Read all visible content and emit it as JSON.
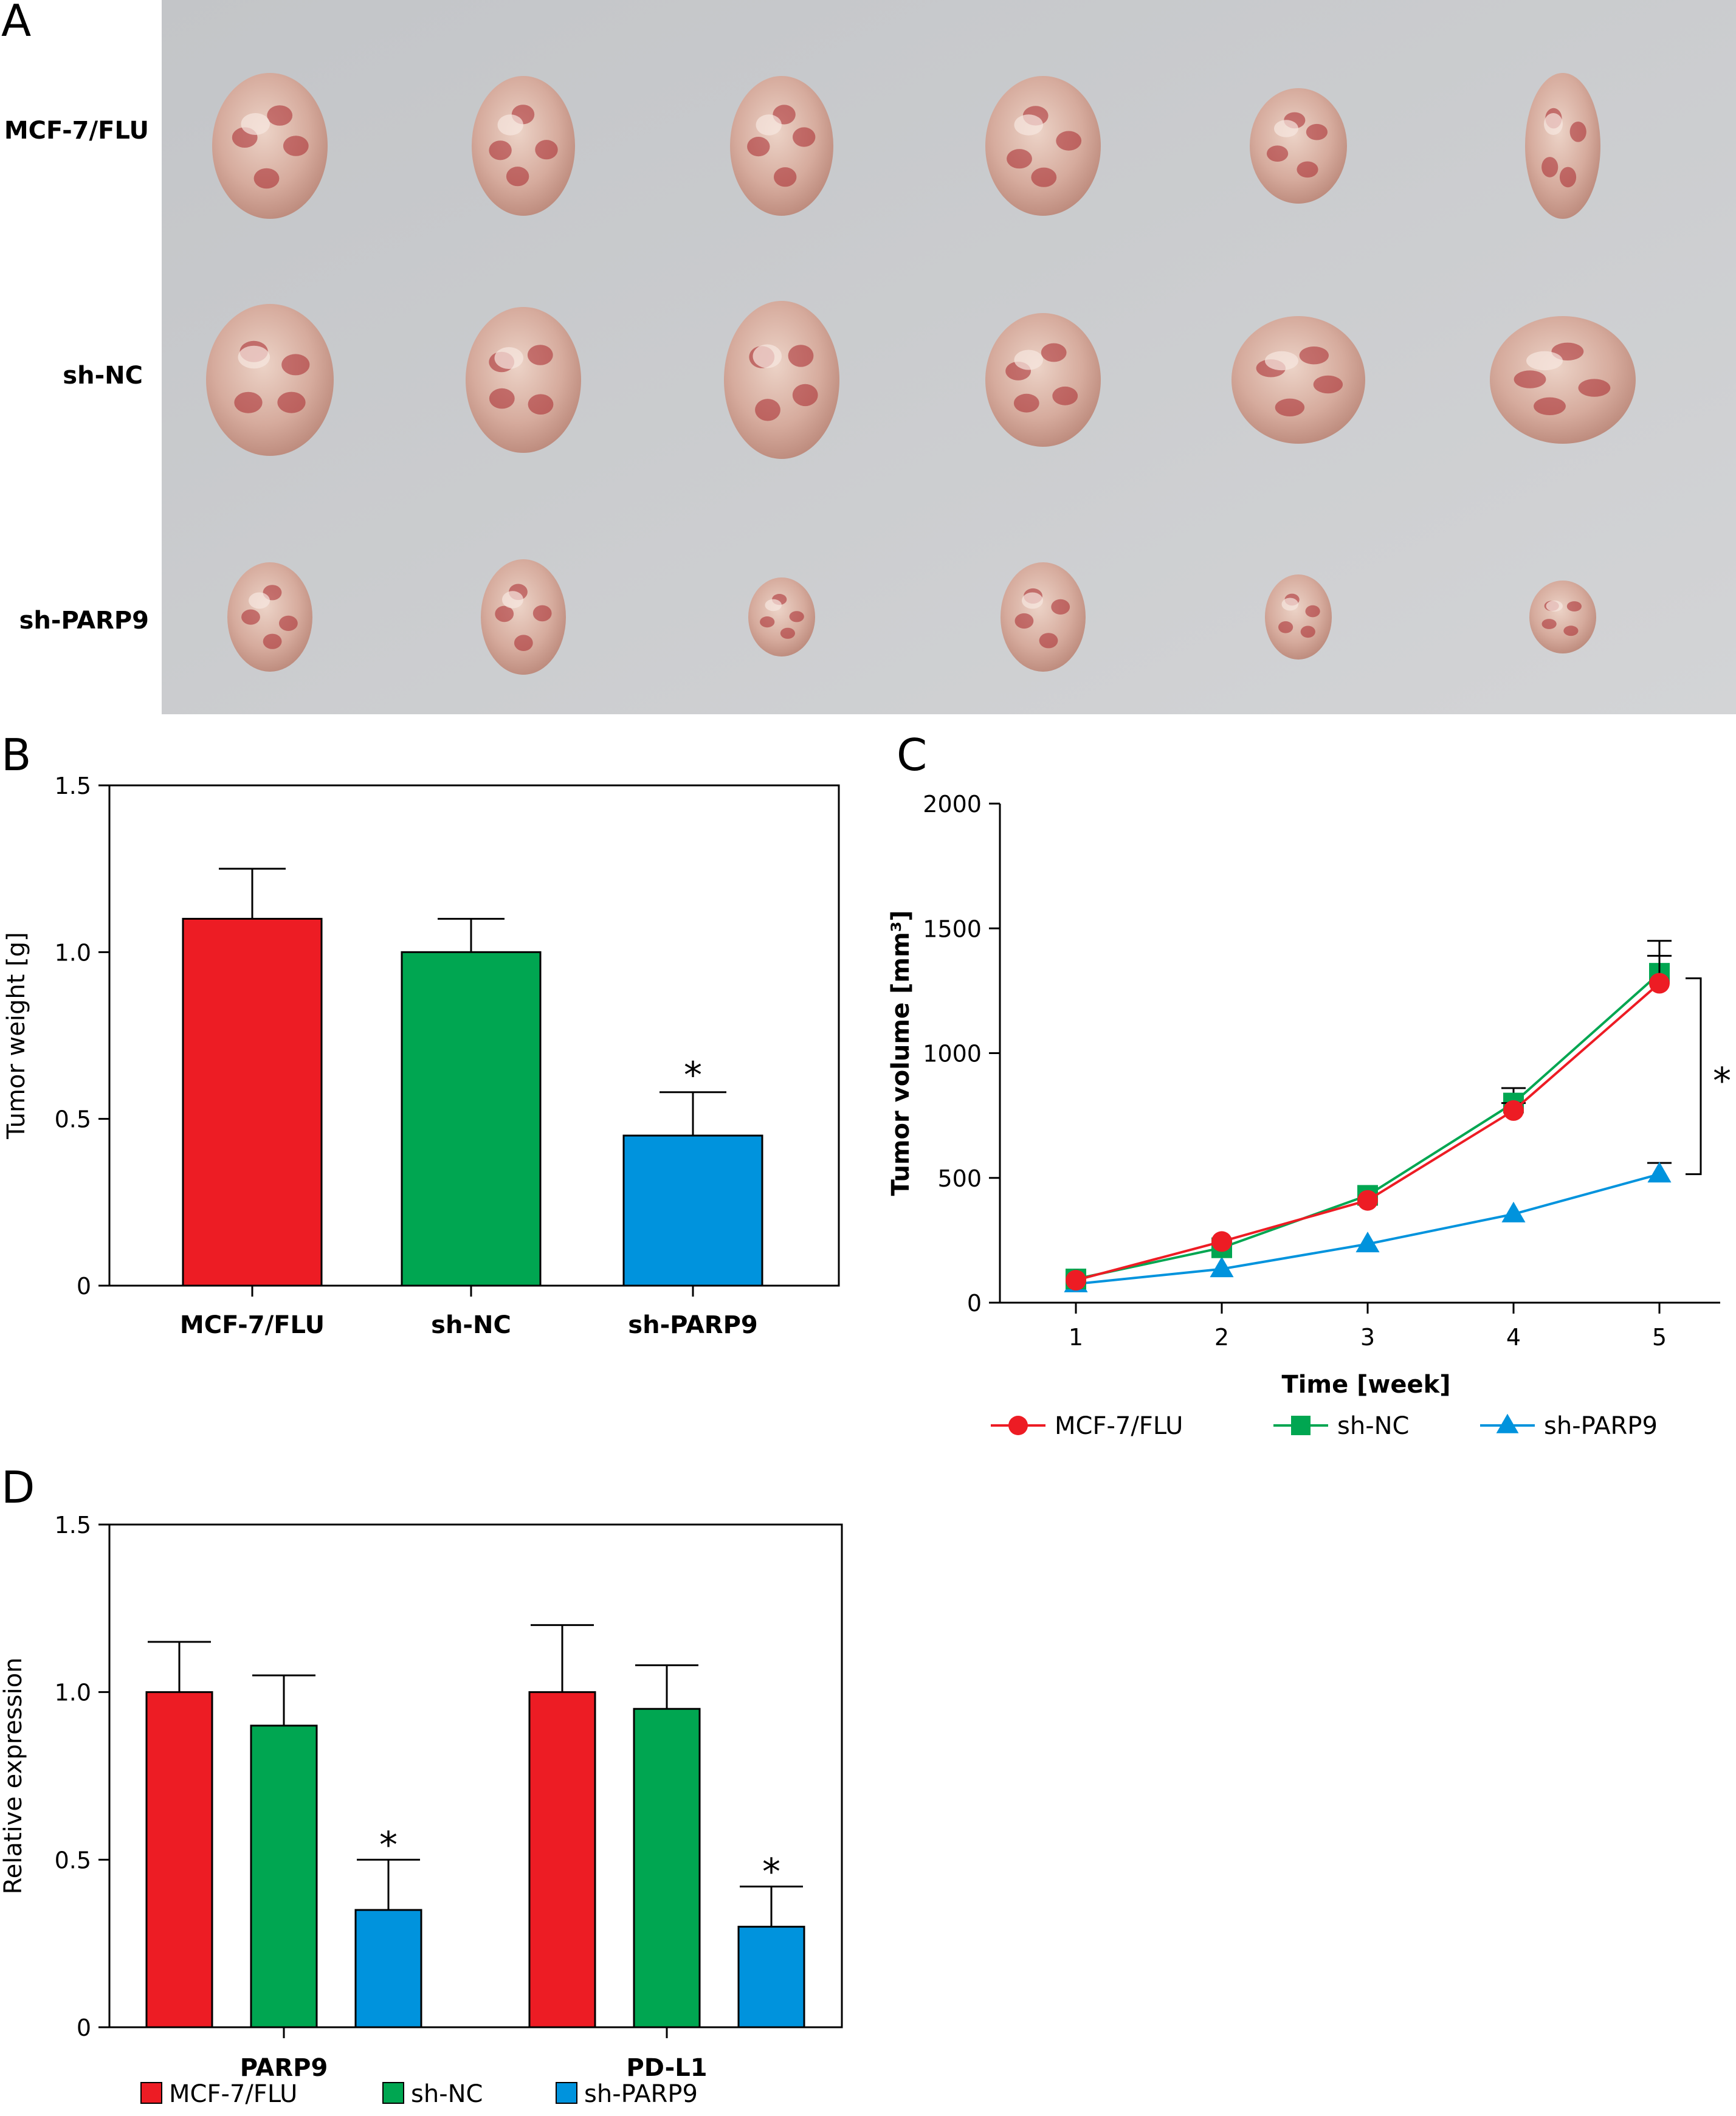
{
  "panel_a": {
    "letter": "A",
    "row_labels": [
      "MCF-7/FLU",
      "sh-NC",
      "sh-PARP9"
    ]
  },
  "panel_b": {
    "letter": "B"
  },
  "panel_c": {
    "letter": "C"
  },
  "panel_d": {
    "letter": "D"
  },
  "colors": {
    "mcf7": "#ed1c24",
    "shnc": "#00a651",
    "shparp9": "#0093dd",
    "photo_bg": "#c9cacd",
    "tumor": "#d9b4a8",
    "tumor_red": "#a8272b"
  },
  "chart_data": [
    {
      "type": "bar",
      "categories": [
        "MCF-7/FLU",
        "sh-NC",
        "sh-PARP9"
      ],
      "values": [
        1.1,
        1.0,
        0.45
      ],
      "errors": [
        0.15,
        0.1,
        0.13
      ],
      "significance": [
        "",
        "",
        "*"
      ],
      "ylabel": "Tumor weight [g]",
      "ylim": [
        0,
        1.5
      ],
      "yticks": [
        0,
        0.5,
        1.0,
        1.5
      ],
      "ytick_labels": [
        "0",
        "0.5",
        "1.0",
        "1.5"
      ],
      "colors": [
        "#ed1c24",
        "#00a651",
        "#0093dd"
      ]
    },
    {
      "type": "line",
      "x": [
        1,
        2,
        3,
        4,
        5
      ],
      "xticks": [
        "1",
        "2",
        "3",
        "4",
        "5"
      ],
      "xlabel": "Time [week]",
      "ylabel": "Tumor volume [mm³]",
      "ylim": [
        0,
        2000
      ],
      "yticks": [
        0,
        500,
        1000,
        1500,
        2000
      ],
      "ytick_labels": [
        "0",
        "500",
        "1000",
        "1500",
        "2000"
      ],
      "series": [
        {
          "name": "MCF-7/FLU",
          "values": [
            90,
            245,
            410,
            770,
            1280
          ],
          "errors": [
            0,
            0,
            0,
            30,
            110
          ],
          "marker": "circle",
          "color": "#ed1c24"
        },
        {
          "name": "sh-NC",
          "values": [
            95,
            220,
            430,
            800,
            1320
          ],
          "errors": [
            0,
            0,
            0,
            60,
            130
          ],
          "marker": "square",
          "color": "#00a651"
        },
        {
          "name": "sh-PARP9",
          "values": [
            75,
            135,
            235,
            355,
            515
          ],
          "errors": [
            0,
            0,
            0,
            0,
            45
          ],
          "marker": "triangle",
          "color": "#0093dd"
        }
      ],
      "significance": "*",
      "legend_position": "bottom"
    },
    {
      "type": "bar",
      "categories": [
        "PARP9",
        "PD-L1"
      ],
      "series": [
        {
          "name": "MCF-7/FLU",
          "values": [
            1.0,
            1.0
          ],
          "errors": [
            0.15,
            0.2
          ],
          "color": "#ed1c24"
        },
        {
          "name": "sh-NC",
          "values": [
            0.9,
            0.95
          ],
          "errors": [
            0.15,
            0.13
          ],
          "color": "#00a651"
        },
        {
          "name": "sh-PARP9",
          "values": [
            0.35,
            0.3
          ],
          "errors": [
            0.15,
            0.12
          ],
          "color": "#0093dd"
        }
      ],
      "significance": [
        "",
        "",
        "*"
      ],
      "ylabel": "Relative expression",
      "ylim": [
        0,
        1.5
      ],
      "yticks": [
        0,
        0.5,
        1.0,
        1.5
      ],
      "ytick_labels": [
        "0",
        "0.5",
        "1.0",
        "1.5"
      ],
      "legend_position": "bottom"
    }
  ]
}
